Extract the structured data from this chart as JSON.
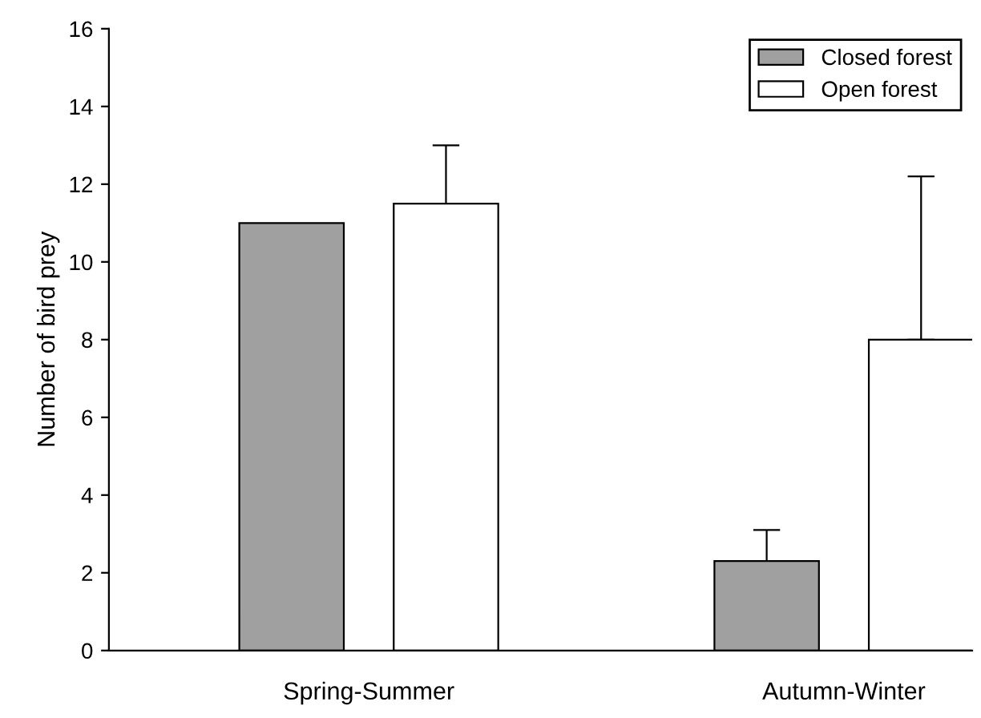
{
  "chart_data": {
    "type": "bar",
    "ylabel": "Number of bird prey",
    "categories": [
      "Spring-Summer",
      "Autumn-Winter"
    ],
    "series": [
      {
        "name": "Closed forest",
        "color": "#a0a0a0",
        "values": [
          11,
          2.3
        ],
        "errors": [
          null,
          [
            2.3,
            3.1
          ]
        ]
      },
      {
        "name": "Open forest",
        "color": "#ffffff",
        "values": [
          11.5,
          8
        ],
        "errors": [
          [
            11.5,
            13
          ],
          [
            8,
            12.2
          ]
        ]
      }
    ],
    "ylim": [
      0,
      16
    ],
    "yticks": [
      0,
      2,
      4,
      6,
      8,
      10,
      12,
      14,
      16
    ],
    "grid": false,
    "legend": "top right"
  }
}
